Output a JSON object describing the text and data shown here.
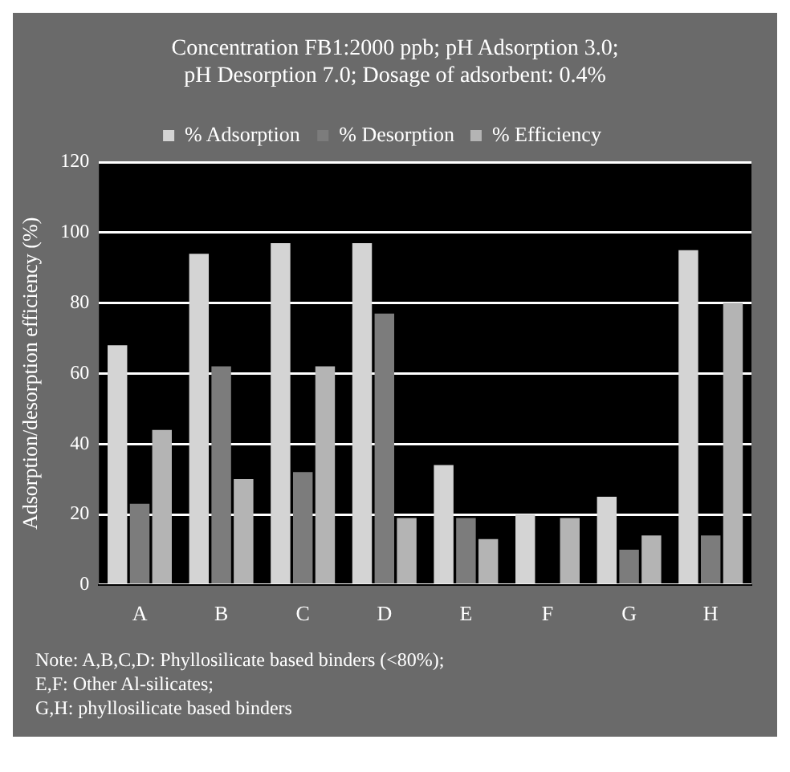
{
  "chart_data": {
    "type": "bar",
    "title": "Concentration FB1:2000 ppb; pH Adsorption 3.0; pH Desorption 7.0; Dosage of adsorbent: 0.4%",
    "ylabel": "Adsorption/desorption efficiency (%)",
    "categories": [
      "A",
      "B",
      "C",
      "D",
      "E",
      "F",
      "G",
      "H"
    ],
    "series": [
      {
        "name": "% Adsorption",
        "color": "#d4d4d4",
        "values": [
          68,
          94,
          97,
          97,
          34,
          20,
          25,
          95
        ]
      },
      {
        "name": "% Desorption",
        "color": "#7c7c7c",
        "values": [
          23,
          62,
          32,
          77,
          19,
          0,
          10,
          14
        ]
      },
      {
        "name": "% Efficiency",
        "color": "#b4b4b4",
        "values": [
          44,
          30,
          62,
          19,
          13,
          19,
          14,
          80
        ]
      }
    ],
    "ylim": [
      0,
      120
    ],
    "yticks": [
      0,
      20,
      40,
      60,
      80,
      100,
      120
    ],
    "grid": "y",
    "legend": "top",
    "annotations": [
      "Note: A,B,C,D: Phyllosilicate based binders (<80%);",
      "E,F: Other Al-silicates;",
      "G,H: phyllosilicate based binders"
    ]
  }
}
